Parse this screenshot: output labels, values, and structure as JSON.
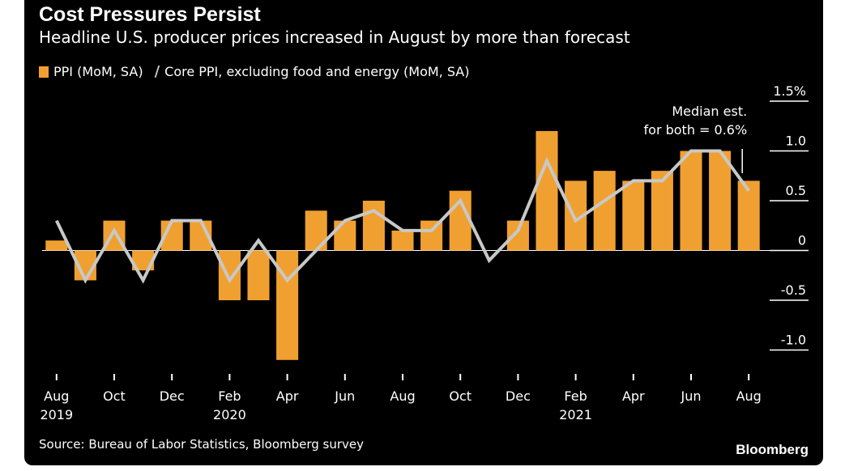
{
  "chart_data": {
    "type": "bar",
    "title": "Cost Pressures Persist",
    "subtitle": "Headline U.S. producer prices increased in August by more than forecast",
    "series": [
      {
        "name": "PPI (MoM, SA)",
        "kind": "bar",
        "color": "#f0a030",
        "values": [
          0.1,
          -0.3,
          0.3,
          -0.2,
          0.3,
          0.3,
          -0.5,
          -0.5,
          -1.1,
          0.4,
          0.3,
          0.5,
          0.2,
          0.3,
          0.6,
          0.0,
          0.3,
          1.2,
          0.7,
          0.8,
          0.7,
          0.8,
          1.0,
          1.0,
          0.7
        ]
      },
      {
        "name": "Core PPI, excluding food and energy (MoM, SA)",
        "kind": "line",
        "color": "#c8c8c8",
        "values": [
          0.3,
          -0.3,
          0.2,
          -0.3,
          0.3,
          0.3,
          -0.3,
          0.1,
          -0.3,
          0.0,
          0.3,
          0.4,
          0.2,
          0.2,
          0.5,
          -0.1,
          0.2,
          0.9,
          0.3,
          0.5,
          0.7,
          0.7,
          1.0,
          1.0,
          0.6
        ]
      }
    ],
    "categories": [
      "Aug 2019",
      "Sep 2019",
      "Oct 2019",
      "Nov 2019",
      "Dec 2019",
      "Jan 2020",
      "Feb 2020",
      "Mar 2020",
      "Apr 2020",
      "May 2020",
      "Jun 2020",
      "Jul 2020",
      "Aug 2020",
      "Sep 2020",
      "Oct 2020",
      "Nov 2020",
      "Dec 2020",
      "Jan 2021",
      "Feb 2021",
      "Mar 2021",
      "Apr 2021",
      "May 2021",
      "Jun 2021",
      "Jul 2021",
      "Aug 2021"
    ],
    "x_ticks": [
      {
        "index": 0,
        "label": "Aug",
        "year": "2019"
      },
      {
        "index": 2,
        "label": "Oct",
        "year": ""
      },
      {
        "index": 4,
        "label": "Dec",
        "year": ""
      },
      {
        "index": 6,
        "label": "Feb",
        "year": "2020"
      },
      {
        "index": 8,
        "label": "Apr",
        "year": ""
      },
      {
        "index": 10,
        "label": "Jun",
        "year": ""
      },
      {
        "index": 12,
        "label": "Aug",
        "year": ""
      },
      {
        "index": 14,
        "label": "Oct",
        "year": ""
      },
      {
        "index": 16,
        "label": "Dec",
        "year": ""
      },
      {
        "index": 18,
        "label": "Feb",
        "year": "2021"
      },
      {
        "index": 20,
        "label": "Apr",
        "year": ""
      },
      {
        "index": 22,
        "label": "Jun",
        "year": ""
      },
      {
        "index": 24,
        "label": "Aug",
        "year": ""
      }
    ],
    "y_ticks": [
      {
        "value": 1.5,
        "label": "1.5%"
      },
      {
        "value": 1.0,
        "label": "1.0"
      },
      {
        "value": 0.5,
        "label": "0.5"
      },
      {
        "value": 0,
        "label": "0"
      },
      {
        "value": -0.5,
        "label": "-0.5"
      },
      {
        "value": -1.0,
        "label": "-1.0"
      }
    ],
    "ylim": [
      -1.2,
      1.6
    ],
    "y_axis_side": "right",
    "annotation": {
      "line1": "Median est.",
      "line2": "for both = 0.6%",
      "value": 0.6
    }
  },
  "source": "Source: Bureau of Labor Statistics, Bloomberg survey",
  "brand": "Bloomberg",
  "colors": {
    "background": "#000000",
    "bar": "#f0a030",
    "line": "#c8c8c8",
    "text": "#ffffff"
  }
}
